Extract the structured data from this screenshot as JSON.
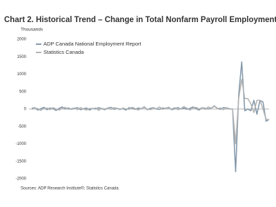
{
  "chart_data": {
    "type": "line",
    "title": "Chart 2. Historical Trend – Change in Total Nonfarm Payroll Employment",
    "y_label": "Thousands",
    "source": "Sources: ADP Research Institute®; Statistics Canada",
    "categories": [
      null,
      null,
      null,
      null,
      null,
      null,
      null,
      null,
      null,
      null,
      null,
      null,
      null,
      null,
      null,
      null,
      null,
      null,
      null,
      null,
      null,
      null,
      null,
      null,
      null,
      null,
      null,
      null,
      null,
      null,
      null,
      null,
      null,
      null,
      null,
      null,
      null,
      null,
      null,
      null,
      null,
      null,
      null,
      null,
      null,
      null,
      null,
      null,
      null,
      null,
      null,
      null,
      null,
      null,
      null,
      null,
      null,
      null,
      null,
      null,
      null,
      null,
      null,
      null,
      null,
      null,
      null,
      null,
      null,
      null,
      null,
      null,
      null,
      null,
      null,
      null,
      null,
      null,
      null
    ],
    "series": [
      {
        "name": "ADP Canada National Employment Report",
        "color": "#8499ab",
        "values": [
          20,
          40,
          -30,
          10,
          50,
          -20,
          30,
          10,
          -40,
          20,
          60,
          0,
          30,
          -10,
          20,
          40,
          -20,
          10,
          30,
          -30,
          20,
          0,
          40,
          10,
          -20,
          30,
          50,
          -10,
          20,
          0,
          10,
          -30,
          40,
          20,
          -10,
          30,
          10,
          60,
          -20,
          20,
          40,
          0,
          -10,
          30,
          20,
          50,
          -20,
          10,
          40,
          0,
          30,
          -10,
          20,
          60,
          10,
          -30,
          40,
          20,
          0,
          30,
          90,
          20,
          -10,
          40,
          30,
          0,
          0,
          -1800,
          400,
          1350,
          -50,
          0,
          -50,
          250,
          -150,
          250,
          200,
          -350,
          -300
        ]
      },
      {
        "name": "Statistics Canada",
        "color": "#b4b4b4",
        "values": [
          -10,
          30,
          10,
          -40,
          20,
          30,
          -20,
          40,
          0,
          -30,
          20,
          50,
          -10,
          10,
          30,
          -20,
          40,
          0,
          -30,
          20,
          10,
          30,
          -40,
          20,
          0,
          30,
          -10,
          40,
          20,
          -20,
          30,
          0,
          -10,
          50,
          10,
          -30,
          20,
          40,
          0,
          -20,
          30,
          10,
          60,
          -10,
          20,
          30,
          0,
          40,
          -20,
          10,
          70,
          20,
          -30,
          30,
          50,
          0,
          40,
          -10,
          60,
          20,
          80,
          10,
          30,
          -20,
          40,
          10,
          0,
          -1000,
          300,
          850,
          300,
          300,
          150,
          -100,
          250,
          250,
          0,
          -300,
          -300
        ]
      }
    ],
    "ylim": [
      -2000,
      2000
    ],
    "yticks": [
      -2000,
      -1500,
      -1000,
      -500,
      0,
      500,
      1000,
      1500,
      2000
    ],
    "grid": false,
    "legend": "upper left"
  }
}
